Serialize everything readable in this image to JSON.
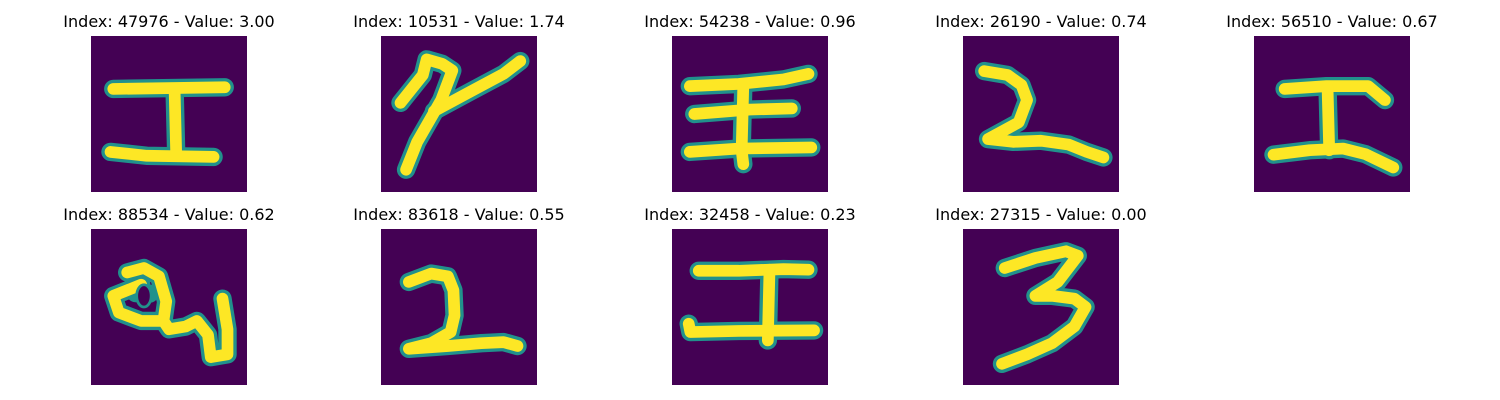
{
  "colors": {
    "background": "#440154",
    "stroke": "#fde725",
    "edge": "#21918c"
  },
  "panels": [
    {
      "title": "Index: 47976 - Value: 3.00",
      "glyph": "stroke-shape-I"
    },
    {
      "title": "Index: 10531 - Value: 1.74",
      "glyph": "stroke-shape-slanted"
    },
    {
      "title": "Index: 54238 - Value: 0.96",
      "glyph": "stroke-shape-cross"
    },
    {
      "title": "Index: 26190 - Value: 0.74",
      "glyph": "stroke-shape-curve"
    },
    {
      "title": "Index: 56510 - Value: 0.67",
      "glyph": "stroke-shape-I"
    },
    {
      "title": "Index: 88534 - Value: 0.62",
      "glyph": "stroke-shape-loop"
    },
    {
      "title": "Index: 83618 - Value: 0.55",
      "glyph": "stroke-shape-two"
    },
    {
      "title": "Index: 32458 - Value: 0.23",
      "glyph": "stroke-shape-cross"
    },
    {
      "title": "Index: 27315 - Value: 0.00",
      "glyph": "stroke-shape-three"
    }
  ]
}
